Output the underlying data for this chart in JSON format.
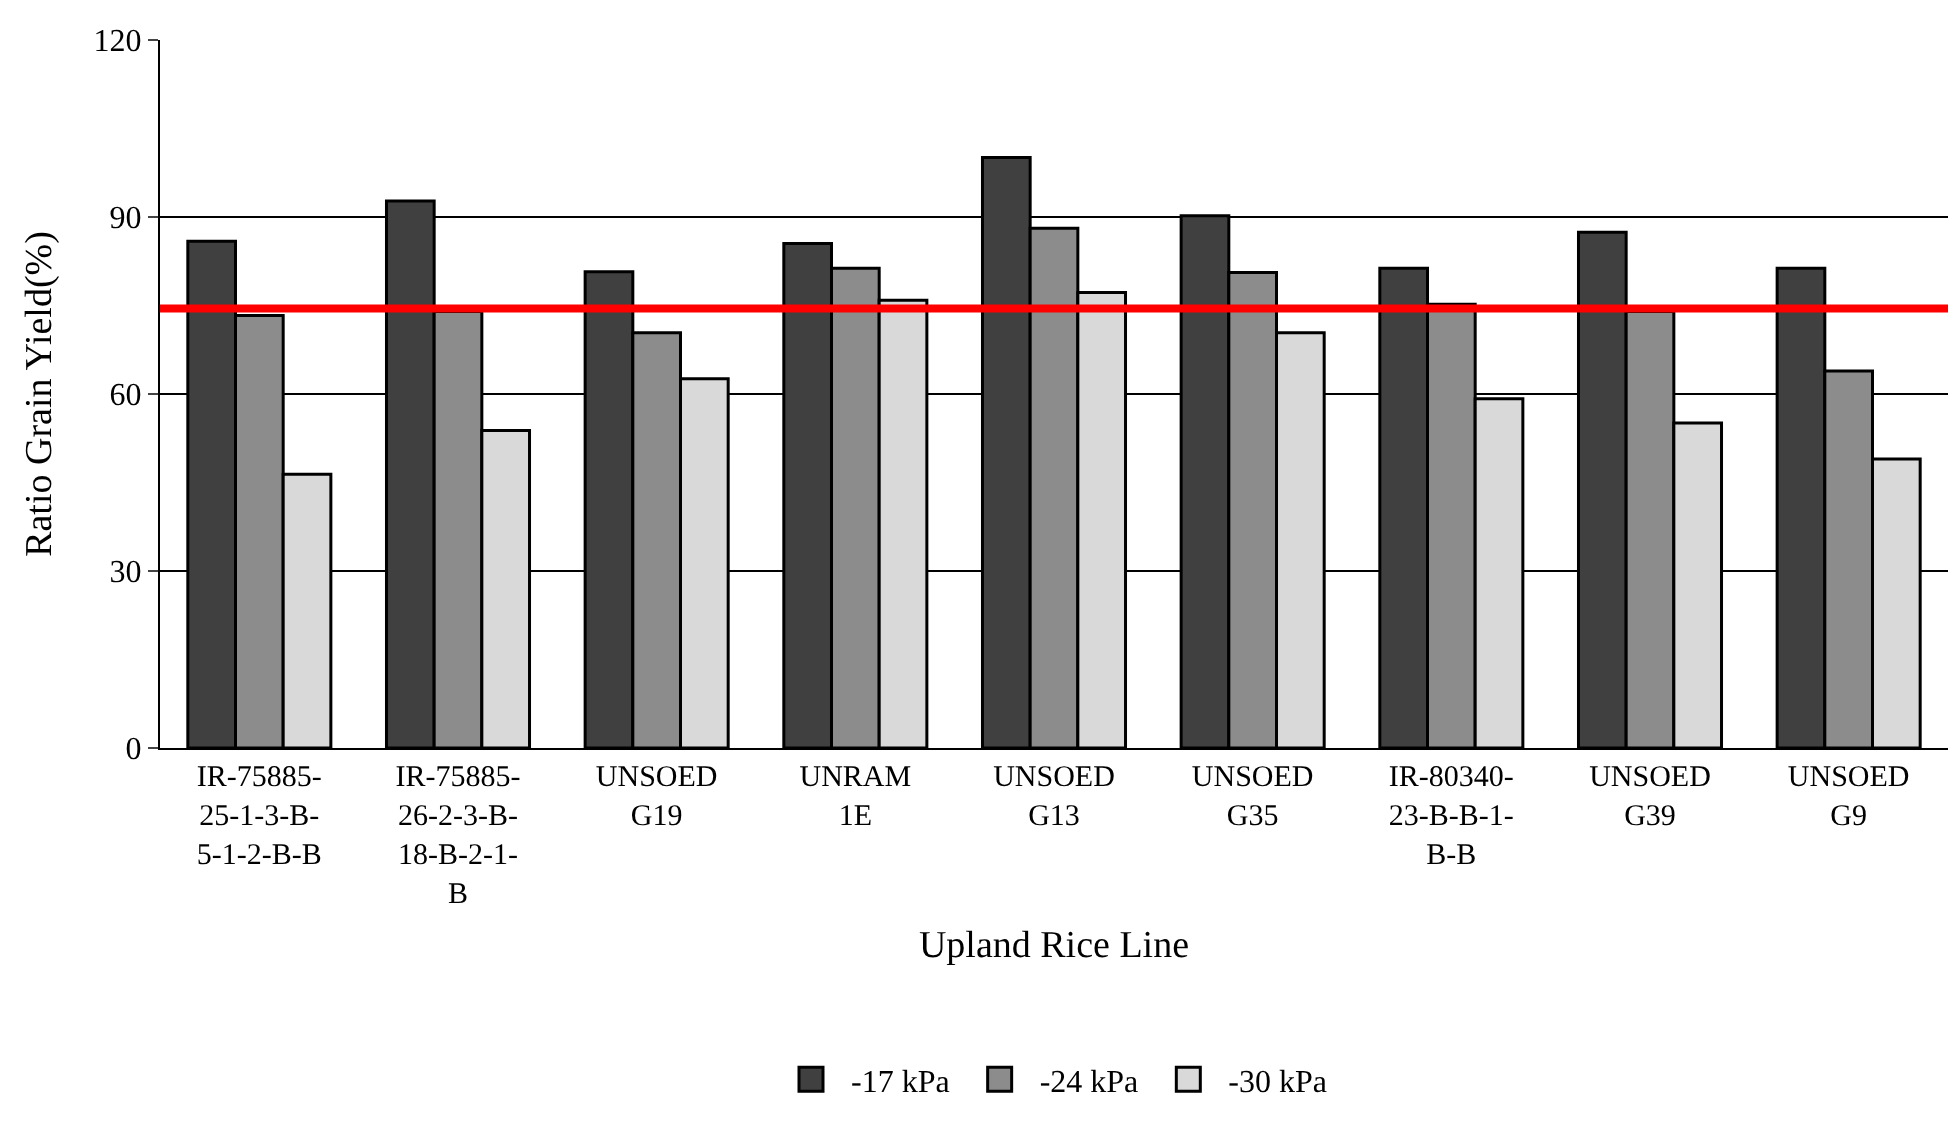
{
  "chart_data": {
    "type": "bar",
    "xlabel": "Upland Rice Line",
    "ylabel": "Ratio Grain Yield(%)",
    "categories": [
      "IR-75885-25-1-3-B-5-1-2-B-B",
      "IR-75885-26-2-3-B-18-B-2-1-B",
      "UNSOED G19",
      "UNRAM 1E",
      "UNSOED G13",
      "UNSOED G35",
      "IR-80340-23-B-B-1-B-B",
      "UNSOED G39",
      "UNSOED G9"
    ],
    "series": [
      {
        "name": "-17 kPa",
        "color": "#404040",
        "values": [
          85.9,
          92.7,
          80.7,
          85.5,
          100.1,
          90.2,
          81.3,
          87.4,
          81.3
        ]
      },
      {
        "name": "-24 kPa",
        "color": "#8c8c8c",
        "values": [
          73.3,
          74,
          70.4,
          81.3,
          88.1,
          80.6,
          75.2,
          74,
          63.9
        ]
      },
      {
        "name": "-30 kPa",
        "color": "#d9d9d9",
        "values": [
          46.4,
          53.8,
          62.6,
          75.9,
          77.2,
          70.4,
          59.2,
          55.1,
          49
        ]
      }
    ],
    "ylim": [
      0,
      120
    ],
    "yticks": [
      0,
      30,
      60,
      90,
      120
    ],
    "grid": "y",
    "legend": "bottom",
    "ref_lines": [
      {
        "axis": "y",
        "value": 74.5,
        "color": "#ff0000",
        "line_style": "solid"
      }
    ]
  }
}
